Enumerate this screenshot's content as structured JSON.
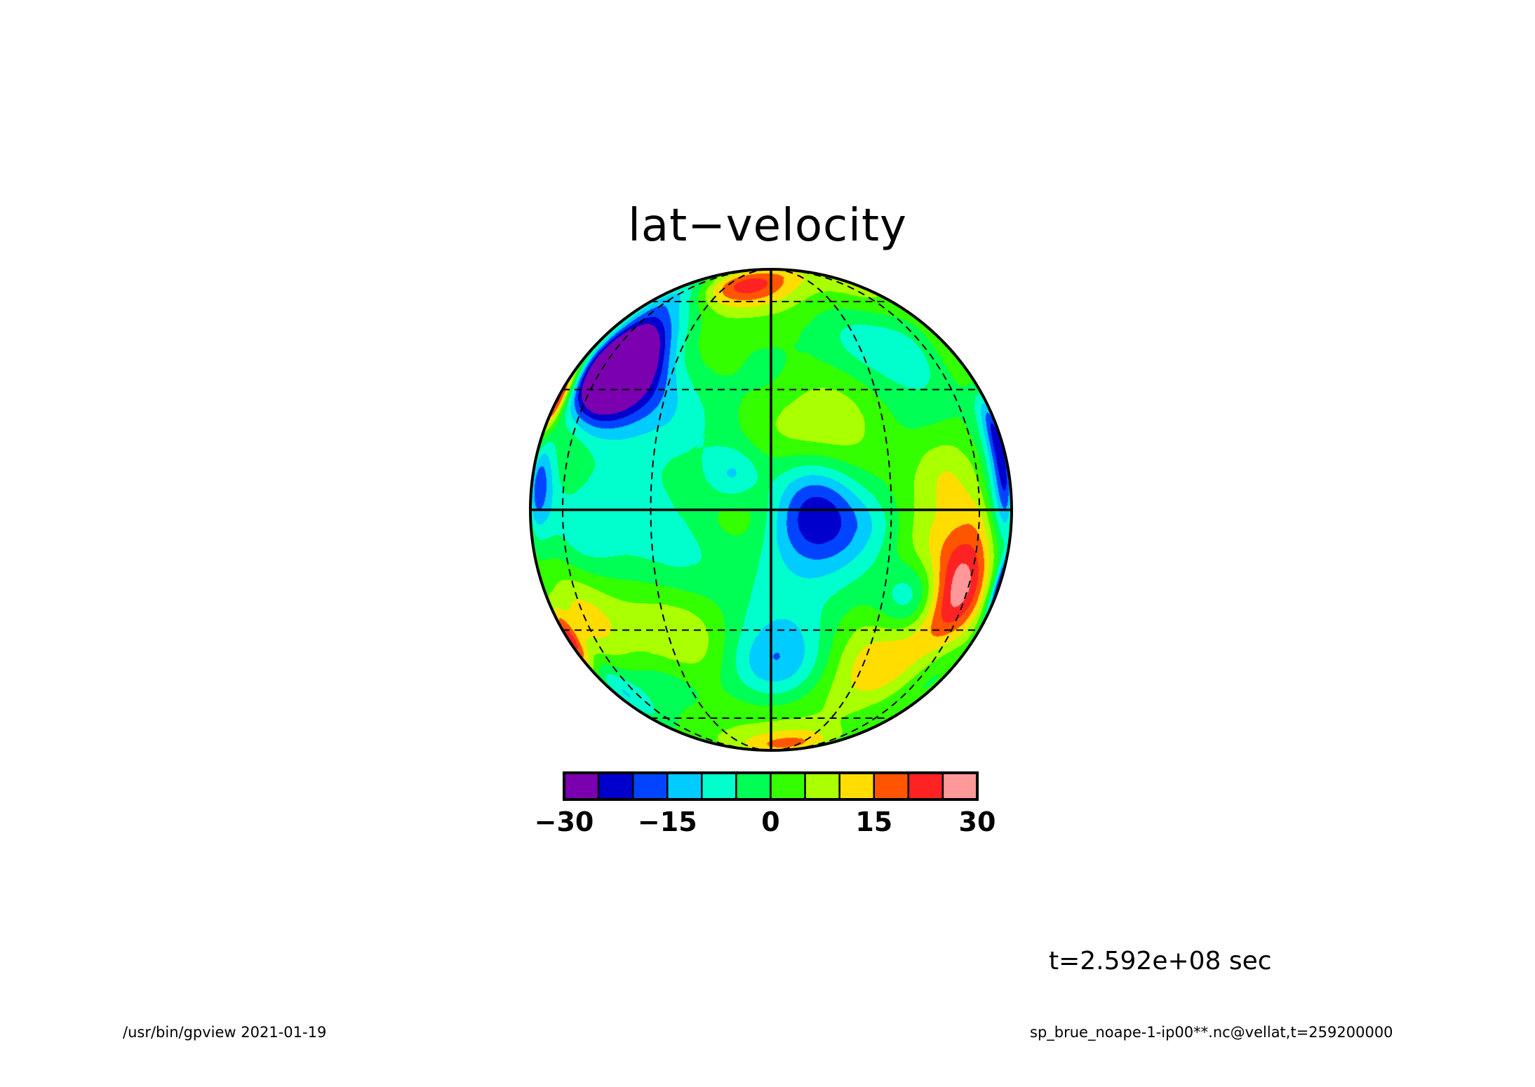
{
  "chart_data": {
    "type": "heatmap",
    "projection": "orthographic",
    "title": "lat−velocity",
    "field": "vellat",
    "time_label": "t=2.592e+08 sec",
    "colorbar": {
      "levels": [
        -30,
        -25,
        -20,
        -15,
        -10,
        -5,
        0,
        5,
        10,
        15,
        20,
        25,
        30
      ],
      "colors": [
        "#7a00b0",
        "#0000cc",
        "#0044ff",
        "#00ccff",
        "#00ffcc",
        "#00ff55",
        "#33ff00",
        "#aaff00",
        "#ffdd00",
        "#ff5500",
        "#ff2222",
        "#ff9999"
      ],
      "tick_labels": [
        "−30",
        "−15",
        "0",
        "15",
        "30"
      ],
      "tick_values": [
        -30,
        -15,
        0,
        15,
        30
      ]
    },
    "background_color": "#44ff22",
    "graticule": {
      "solid_meridian_deg": 0,
      "solid_parallel_deg": 0,
      "dashed_parallels_deg": [
        -60,
        -30,
        30,
        60
      ],
      "dashed_meridians_deg": [
        -90,
        -60,
        -30,
        30,
        60,
        90
      ]
    },
    "blobs": [
      {
        "lon": -49,
        "lat": 39,
        "r_deg": 14,
        "value": -27
      },
      {
        "lon": -52,
        "lat": 36,
        "r_deg": 9,
        "value": -33
      },
      {
        "lon": -28,
        "lat": 44,
        "r_deg": 10,
        "value": 13
      },
      {
        "lon": -40,
        "lat": 17,
        "r_deg": 22,
        "value": -8
      },
      {
        "lon": -64,
        "lat": 12,
        "r_deg": 11,
        "value": 14
      },
      {
        "lon": -52,
        "lat": -7,
        "r_deg": 10,
        "value": -12
      },
      {
        "lon": -74,
        "lat": 6,
        "r_deg": 9,
        "value": -24
      },
      {
        "lon": -9,
        "lat": 8,
        "r_deg": 5,
        "value": -14
      },
      {
        "lon": 10,
        "lat": 0,
        "r_deg": 10,
        "value": -26
      },
      {
        "lon": 19,
        "lat": 22,
        "r_deg": 12,
        "value": 13
      },
      {
        "lon": 25,
        "lat": 43,
        "r_deg": 10,
        "value": -10
      },
      {
        "lon": 38,
        "lat": 23,
        "r_deg": 12,
        "value": -9
      },
      {
        "lon": 40,
        "lat": -21,
        "r_deg": 7,
        "value": -20
      },
      {
        "lon": 54,
        "lat": -19,
        "r_deg": 11,
        "value": 25
      },
      {
        "lon": 75,
        "lat": 3,
        "r_deg": 8,
        "value": -20
      },
      {
        "lon": 80,
        "lat": 18,
        "r_deg": 8,
        "value": -24
      },
      {
        "lon": 60,
        "lat": 50,
        "r_deg": 12,
        "value": -11
      },
      {
        "lon": 0,
        "lat": -40,
        "r_deg": 9,
        "value": -16
      },
      {
        "lon": 33,
        "lat": -42,
        "r_deg": 12,
        "value": 9
      },
      {
        "lon": -30,
        "lat": -33,
        "r_deg": 10,
        "value": 8
      },
      {
        "lon": 12,
        "lat": -22,
        "r_deg": 12,
        "value": -7
      },
      {
        "lon": -20,
        "lat": -12,
        "r_deg": 10,
        "value": -6
      },
      {
        "lon": -3,
        "lat": 3,
        "r_deg": 8,
        "value": 10
      },
      {
        "lon": -57,
        "lat": -26,
        "r_deg": 10,
        "value": 11
      },
      {
        "lon": -12,
        "lat": 67,
        "r_deg": 8,
        "value": 12
      },
      {
        "lon": 14,
        "lat": 80,
        "r_deg": 8,
        "value": 9
      },
      {
        "lon": -24,
        "lat": 68,
        "r_deg": 8,
        "value": 8
      },
      {
        "lon": 55,
        "lat": 58,
        "r_deg": 10,
        "value": 8
      },
      {
        "lon": 62,
        "lat": -50,
        "r_deg": 10,
        "value": -6
      },
      {
        "lon": 18,
        "lat": -76,
        "r_deg": 8,
        "value": 14
      },
      {
        "lon": -82,
        "lat": 28,
        "r_deg": 6,
        "value": 22
      },
      {
        "lon": -80,
        "lat": -33,
        "r_deg": 6,
        "value": 20
      },
      {
        "lon": 86,
        "lat": -18,
        "r_deg": 6,
        "value": -25
      },
      {
        "lon": 73,
        "lat": 40,
        "r_deg": 9,
        "value": 6
      },
      {
        "lon": -60,
        "lat": 65,
        "r_deg": 8,
        "value": -10
      },
      {
        "lon": -70,
        "lat": -48,
        "r_deg": 8,
        "value": -12
      },
      {
        "lon": 45,
        "lat": 8,
        "r_deg": 7,
        "value": 8
      },
      {
        "lon": 27,
        "lat": -3,
        "r_deg": 6,
        "value": -6
      },
      {
        "lon": 60,
        "lat": -3,
        "r_deg": 8,
        "value": 5
      },
      {
        "lon": -35,
        "lat": -45,
        "r_deg": 8,
        "value": -7
      },
      {
        "lon": 0,
        "lat": 30,
        "r_deg": 7,
        "value": -5
      }
    ]
  },
  "footer": {
    "left": "/usr/bin/gpview  2021-01-19",
    "right": "sp_brue_noape-1-ip00**.nc@vellat,t=259200000"
  }
}
